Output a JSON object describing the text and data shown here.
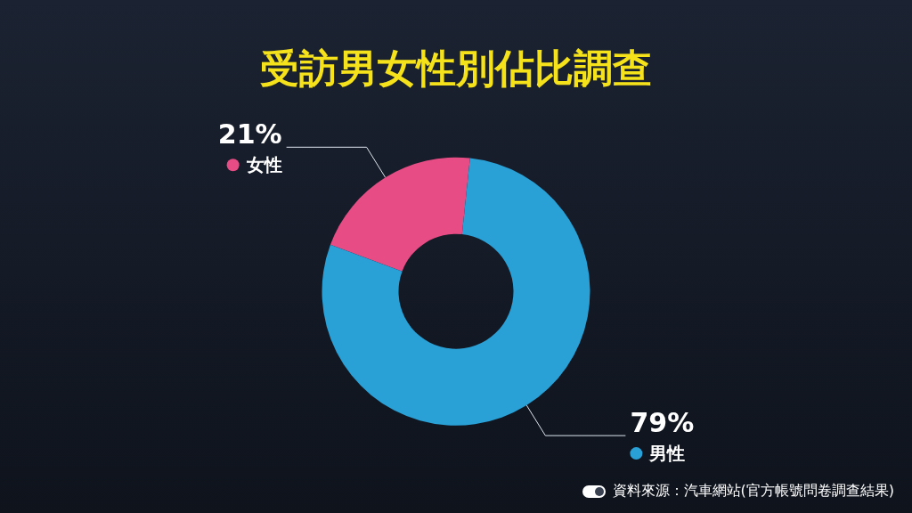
{
  "chart_data": {
    "type": "donut",
    "title": "受訪男女性別佔比調查",
    "categories": [
      "女性",
      "男性"
    ],
    "values": [
      21,
      79
    ],
    "value_labels": [
      "21%",
      "79%"
    ],
    "colors": [
      "#e84c85",
      "#29a0d6"
    ],
    "data_labels": true,
    "legend": "right",
    "annotations": [
      "資料來源：汽車網站(官方帳號問卷調查結果)"
    ]
  }
}
